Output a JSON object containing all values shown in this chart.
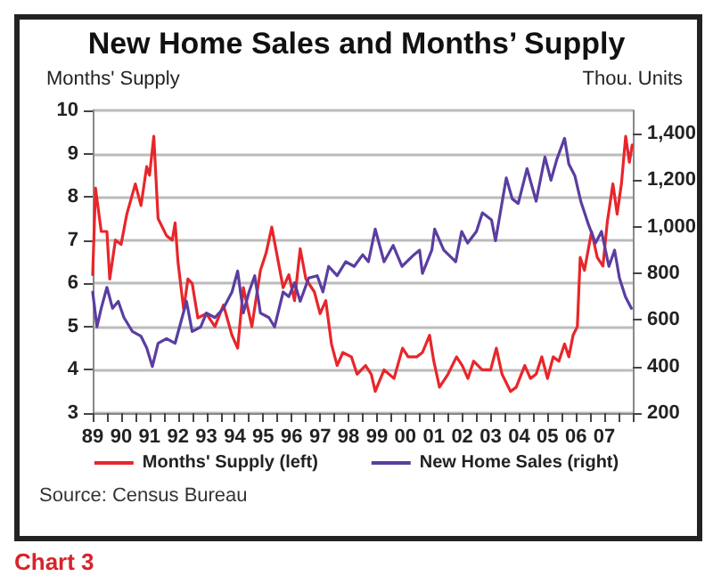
{
  "chart_data": {
    "type": "line",
    "title": "New Home Sales and Months’ Supply",
    "ylabel": "Months' Supply",
    "y2label": "Thou. Units",
    "annotations": [
      "Source: Census Bureau",
      "Chart 3"
    ],
    "xlim": [
      1989,
      2008
    ],
    "xticks": [
      {
        "value": 1989,
        "label": "89"
      },
      {
        "value": 1989.5,
        "label": null
      },
      {
        "value": 1990,
        "label": "90"
      },
      {
        "value": 1990.5,
        "label": null
      },
      {
        "value": 1991,
        "label": "91"
      },
      {
        "value": 1991.5,
        "label": null
      },
      {
        "value": 1992,
        "label": "92"
      },
      {
        "value": 1992.5,
        "label": null
      },
      {
        "value": 1993,
        "label": "93"
      },
      {
        "value": 1993.5,
        "label": null
      },
      {
        "value": 1994,
        "label": "94"
      },
      {
        "value": 1994.5,
        "label": null
      },
      {
        "value": 1995,
        "label": "95"
      },
      {
        "value": 1995.5,
        "label": null
      },
      {
        "value": 1996,
        "label": "96"
      },
      {
        "value": 1996.5,
        "label": null
      },
      {
        "value": 1997,
        "label": "97"
      },
      {
        "value": 1997.5,
        "label": null
      },
      {
        "value": 1998,
        "label": "98"
      },
      {
        "value": 1998.5,
        "label": null
      },
      {
        "value": 1999,
        "label": "99"
      },
      {
        "value": 1999.5,
        "label": null
      },
      {
        "value": 2000,
        "label": "00"
      },
      {
        "value": 2000.5,
        "label": null
      },
      {
        "value": 2001,
        "label": "01"
      },
      {
        "value": 2001.5,
        "label": null
      },
      {
        "value": 2002,
        "label": "02"
      },
      {
        "value": 2002.5,
        "label": null
      },
      {
        "value": 2003,
        "label": "03"
      },
      {
        "value": 2003.5,
        "label": null
      },
      {
        "value": 2004,
        "label": "04"
      },
      {
        "value": 2004.5,
        "label": null
      },
      {
        "value": 2005,
        "label": "05"
      },
      {
        "value": 2005.5,
        "label": null
      },
      {
        "value": 2006,
        "label": "06"
      },
      {
        "value": 2006.5,
        "label": null
      },
      {
        "value": 2007,
        "label": "07"
      },
      {
        "value": 2007.5,
        "label": null
      },
      {
        "value": 2008,
        "label": null
      }
    ],
    "ylim": [
      3,
      10
    ],
    "yticks": [
      3,
      4,
      5,
      6,
      7,
      8,
      9,
      10
    ],
    "y2lim": [
      200,
      1500
    ],
    "y2ticks": [
      200,
      400,
      600,
      800,
      {
        "value": 1000,
        "label": "1,000"
      },
      {
        "value": 1200,
        "label": "1,200"
      },
      {
        "value": 1400,
        "label": "1,400"
      }
    ],
    "grid": "y",
    "legend": "bottom",
    "marker": "none",
    "line_style": "solid",
    "series": [
      {
        "name": "Months' Supply (left)",
        "color": "#e8262a",
        "x": [
          1989.0,
          1989.1,
          1989.3,
          1989.5,
          1989.6,
          1989.8,
          1990.0,
          1990.2,
          1990.5,
          1990.7,
          1990.9,
          1991.0,
          1991.15,
          1991.3,
          1991.6,
          1991.8,
          1991.9,
          1992.0,
          1992.2,
          1992.35,
          1992.5,
          1992.7,
          1993.0,
          1993.3,
          1993.6,
          1993.9,
          1994.1,
          1994.3,
          1994.6,
          1994.9,
          1995.1,
          1995.3,
          1995.5,
          1995.7,
          1995.9,
          1996.1,
          1996.3,
          1996.5,
          1996.8,
          1997.0,
          1997.2,
          1997.4,
          1997.6,
          1997.8,
          1998.1,
          1998.3,
          1998.6,
          1998.8,
          1998.94,
          1999.25,
          1999.6,
          1999.9,
          2000.1,
          2000.4,
          2000.6,
          2000.85,
          2001.0,
          2001.2,
          2001.5,
          2001.8,
          2002.0,
          2002.2,
          2002.4,
          2002.7,
          2003.0,
          2003.2,
          2003.4,
          2003.7,
          2003.9,
          2004.2,
          2004.4,
          2004.6,
          2004.8,
          2005.0,
          2005.2,
          2005.4,
          2005.6,
          2005.75,
          2005.9,
          2006.05,
          2006.15,
          2006.3,
          2006.55,
          2006.75,
          2006.95,
          2007.1,
          2007.3,
          2007.45,
          2007.6,
          2007.75,
          2007.88,
          2007.98
        ],
        "values": [
          6.2,
          8.2,
          7.2,
          7.2,
          6.1,
          7.0,
          6.9,
          7.6,
          8.3,
          7.8,
          8.7,
          8.5,
          9.4,
          7.5,
          7.1,
          7.0,
          7.4,
          6.5,
          5.4,
          6.1,
          6.0,
          5.2,
          5.3,
          5.0,
          5.5,
          4.8,
          4.5,
          5.9,
          5.0,
          6.3,
          6.7,
          7.3,
          6.6,
          5.9,
          6.2,
          5.6,
          6.8,
          6.1,
          5.8,
          5.3,
          5.6,
          4.6,
          4.1,
          4.4,
          4.3,
          3.9,
          4.1,
          3.9,
          3.5,
          4.0,
          3.8,
          4.5,
          4.3,
          4.3,
          4.4,
          4.8,
          4.2,
          3.6,
          3.9,
          4.3,
          4.1,
          3.8,
          4.2,
          4.0,
          4.0,
          4.5,
          3.9,
          3.5,
          3.6,
          4.1,
          3.8,
          3.9,
          4.3,
          3.8,
          4.3,
          4.2,
          4.6,
          4.3,
          4.8,
          5.0,
          6.6,
          6.3,
          7.2,
          6.6,
          6.4,
          7.4,
          8.3,
          7.6,
          8.3,
          9.4,
          8.8,
          9.2
        ]
      },
      {
        "name": "New Home Sales (right)",
        "color": "#5a3ea0",
        "axis": "y2",
        "x": [
          1989.0,
          1989.15,
          1989.3,
          1989.5,
          1989.7,
          1989.9,
          1990.1,
          1990.4,
          1990.7,
          1990.9,
          1991.1,
          1991.3,
          1991.6,
          1991.9,
          1992.1,
          1992.3,
          1992.5,
          1992.8,
          1993.0,
          1993.3,
          1993.6,
          1993.9,
          1994.1,
          1994.3,
          1994.5,
          1994.7,
          1994.9,
          1995.2,
          1995.4,
          1995.7,
          1995.9,
          1996.1,
          1996.3,
          1996.6,
          1996.9,
          1997.1,
          1997.3,
          1997.6,
          1997.9,
          1998.2,
          1998.5,
          1998.7,
          1998.94,
          1999.25,
          1999.57,
          1999.88,
          2000.3,
          2000.5,
          2000.6,
          2000.93,
          2001.03,
          2001.35,
          2001.77,
          2001.98,
          2002.19,
          2002.5,
          2002.71,
          2003.03,
          2003.17,
          2003.55,
          2003.76,
          2003.97,
          2004.28,
          2004.6,
          2004.91,
          2005.12,
          2005.33,
          2005.6,
          2005.75,
          2005.96,
          2006.17,
          2006.44,
          2006.69,
          2006.9,
          2007.16,
          2007.36,
          2007.53,
          2007.74,
          2007.95
        ],
        "values": [
          720,
          570,
          650,
          740,
          650,
          680,
          610,
          550,
          530,
          480,
          400,
          500,
          520,
          500,
          590,
          680,
          550,
          570,
          630,
          610,
          650,
          720,
          810,
          630,
          720,
          790,
          630,
          610,
          570,
          720,
          700,
          760,
          680,
          780,
          790,
          720,
          830,
          790,
          850,
          830,
          880,
          850,
          990,
          850,
          920,
          830,
          880,
          900,
          800,
          900,
          990,
          900,
          850,
          980,
          930,
          980,
          1060,
          1030,
          940,
          1210,
          1120,
          1100,
          1250,
          1110,
          1300,
          1200,
          1290,
          1380,
          1270,
          1220,
          1110,
          1010,
          930,
          980,
          830,
          900,
          780,
          700,
          650
        ]
      }
    ]
  }
}
